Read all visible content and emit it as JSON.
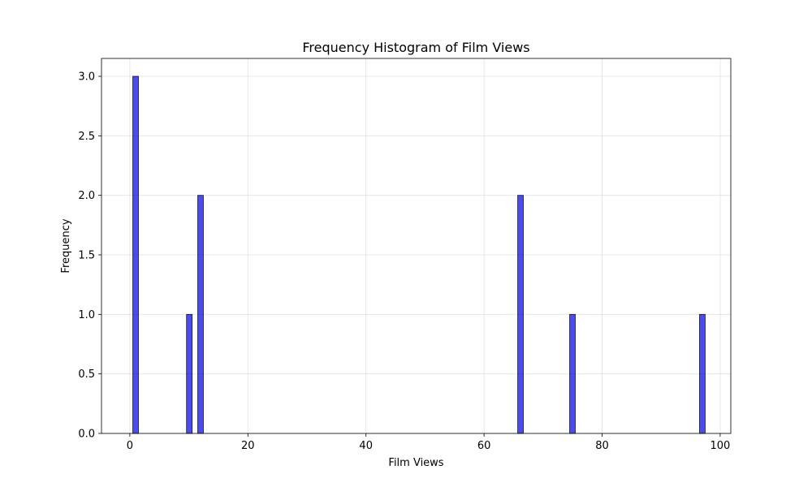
{
  "chart_data": {
    "type": "bar",
    "title": "Frequency Histogram of Film Views",
    "xlabel": "Film Views",
    "ylabel": "Frequency",
    "xlim": [
      -4.8,
      101.8
    ],
    "ylim": [
      0,
      3.15
    ],
    "xticks": [
      0,
      20,
      40,
      60,
      80,
      100
    ],
    "yticks": [
      0.0,
      0.5,
      1.0,
      1.5,
      2.0,
      2.5,
      3.0
    ],
    "xtick_labels": [
      "0",
      "20",
      "40",
      "60",
      "80",
      "100"
    ],
    "ytick_labels": [
      "0.0",
      "0.5",
      "1.0",
      "1.5",
      "2.0",
      "2.5",
      "3.0"
    ],
    "bin_width": 0.96,
    "bins": [
      {
        "start": 0.5,
        "value": 3
      },
      {
        "start": 9.6,
        "value": 1
      },
      {
        "start": 11.5,
        "value": 2
      },
      {
        "start": 65.7,
        "value": 2
      },
      {
        "start": 74.5,
        "value": 1
      },
      {
        "start": 96.5,
        "value": 1
      }
    ],
    "grid": true,
    "bar_color": "#0000e6"
  }
}
